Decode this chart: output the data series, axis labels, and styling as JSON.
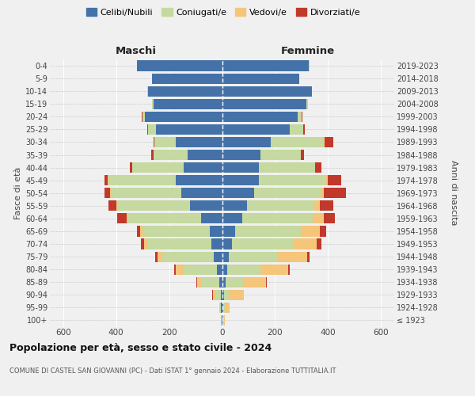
{
  "age_groups": [
    "100+",
    "95-99",
    "90-94",
    "85-89",
    "80-84",
    "75-79",
    "70-74",
    "65-69",
    "60-64",
    "55-59",
    "50-54",
    "45-49",
    "40-44",
    "35-39",
    "30-34",
    "25-29",
    "20-24",
    "15-19",
    "10-14",
    "5-9",
    "0-4"
  ],
  "birth_years": [
    "≤ 1923",
    "1924-1928",
    "1929-1933",
    "1934-1938",
    "1939-1943",
    "1944-1948",
    "1949-1953",
    "1954-1958",
    "1959-1963",
    "1964-1968",
    "1969-1973",
    "1974-1978",
    "1979-1983",
    "1984-1988",
    "1989-1993",
    "1994-1998",
    "1999-2003",
    "2004-2008",
    "2009-2013",
    "2014-2018",
    "2019-2023"
  ],
  "male_celibi": [
    2,
    3,
    5,
    10,
    20,
    30,
    40,
    45,
    80,
    120,
    155,
    175,
    145,
    130,
    175,
    250,
    290,
    260,
    280,
    265,
    320
  ],
  "male_coniugati": [
    2,
    5,
    20,
    65,
    125,
    195,
    240,
    255,
    275,
    275,
    265,
    255,
    195,
    130,
    80,
    30,
    10,
    5,
    2,
    0,
    2
  ],
  "male_vedovi": [
    0,
    2,
    10,
    20,
    30,
    20,
    15,
    10,
    5,
    3,
    2,
    2,
    0,
    0,
    0,
    0,
    0,
    0,
    0,
    0,
    0
  ],
  "male_divorziati": [
    0,
    0,
    2,
    3,
    5,
    8,
    12,
    10,
    35,
    32,
    22,
    12,
    8,
    7,
    5,
    3,
    2,
    0,
    0,
    0,
    0
  ],
  "female_celibi": [
    2,
    5,
    8,
    12,
    18,
    25,
    38,
    50,
    75,
    95,
    120,
    140,
    138,
    145,
    185,
    255,
    285,
    318,
    338,
    292,
    328
  ],
  "female_coniugati": [
    2,
    5,
    18,
    68,
    128,
    182,
    228,
    248,
    268,
    252,
    252,
    252,
    212,
    153,
    200,
    50,
    15,
    5,
    2,
    0,
    2
  ],
  "female_vedovi": [
    5,
    18,
    55,
    85,
    105,
    115,
    92,
    72,
    42,
    22,
    12,
    6,
    2,
    0,
    2,
    0,
    0,
    0,
    0,
    0,
    0
  ],
  "female_divorziati": [
    0,
    0,
    2,
    3,
    5,
    8,
    18,
    22,
    42,
    52,
    85,
    52,
    22,
    12,
    32,
    8,
    3,
    0,
    0,
    0,
    0
  ],
  "color_celibi": "#4472a8",
  "color_coniugati": "#c5d9a0",
  "color_vedovi": "#f5c57a",
  "color_divorziati": "#c0392b",
  "xlim": 650,
  "xticks": [
    -600,
    -400,
    -200,
    0,
    200,
    400,
    600
  ],
  "title": "Popolazione per età, sesso e stato civile - 2024",
  "subtitle": "COMUNE DI CASTEL SAN GIOVANNI (PC) - Dati ISTAT 1° gennaio 2024 - Elaborazione TUTTITALIA.IT",
  "legend_labels": [
    "Celibi/Nubili",
    "Coniugati/e",
    "Vedovi/e",
    "Divorziati/e"
  ],
  "label_maschi": "Maschi",
  "label_femmine": "Femmine",
  "ylabel_left": "Fasce di età",
  "ylabel_right": "Anni di nascita",
  "bg_color": "#f0f0f0"
}
